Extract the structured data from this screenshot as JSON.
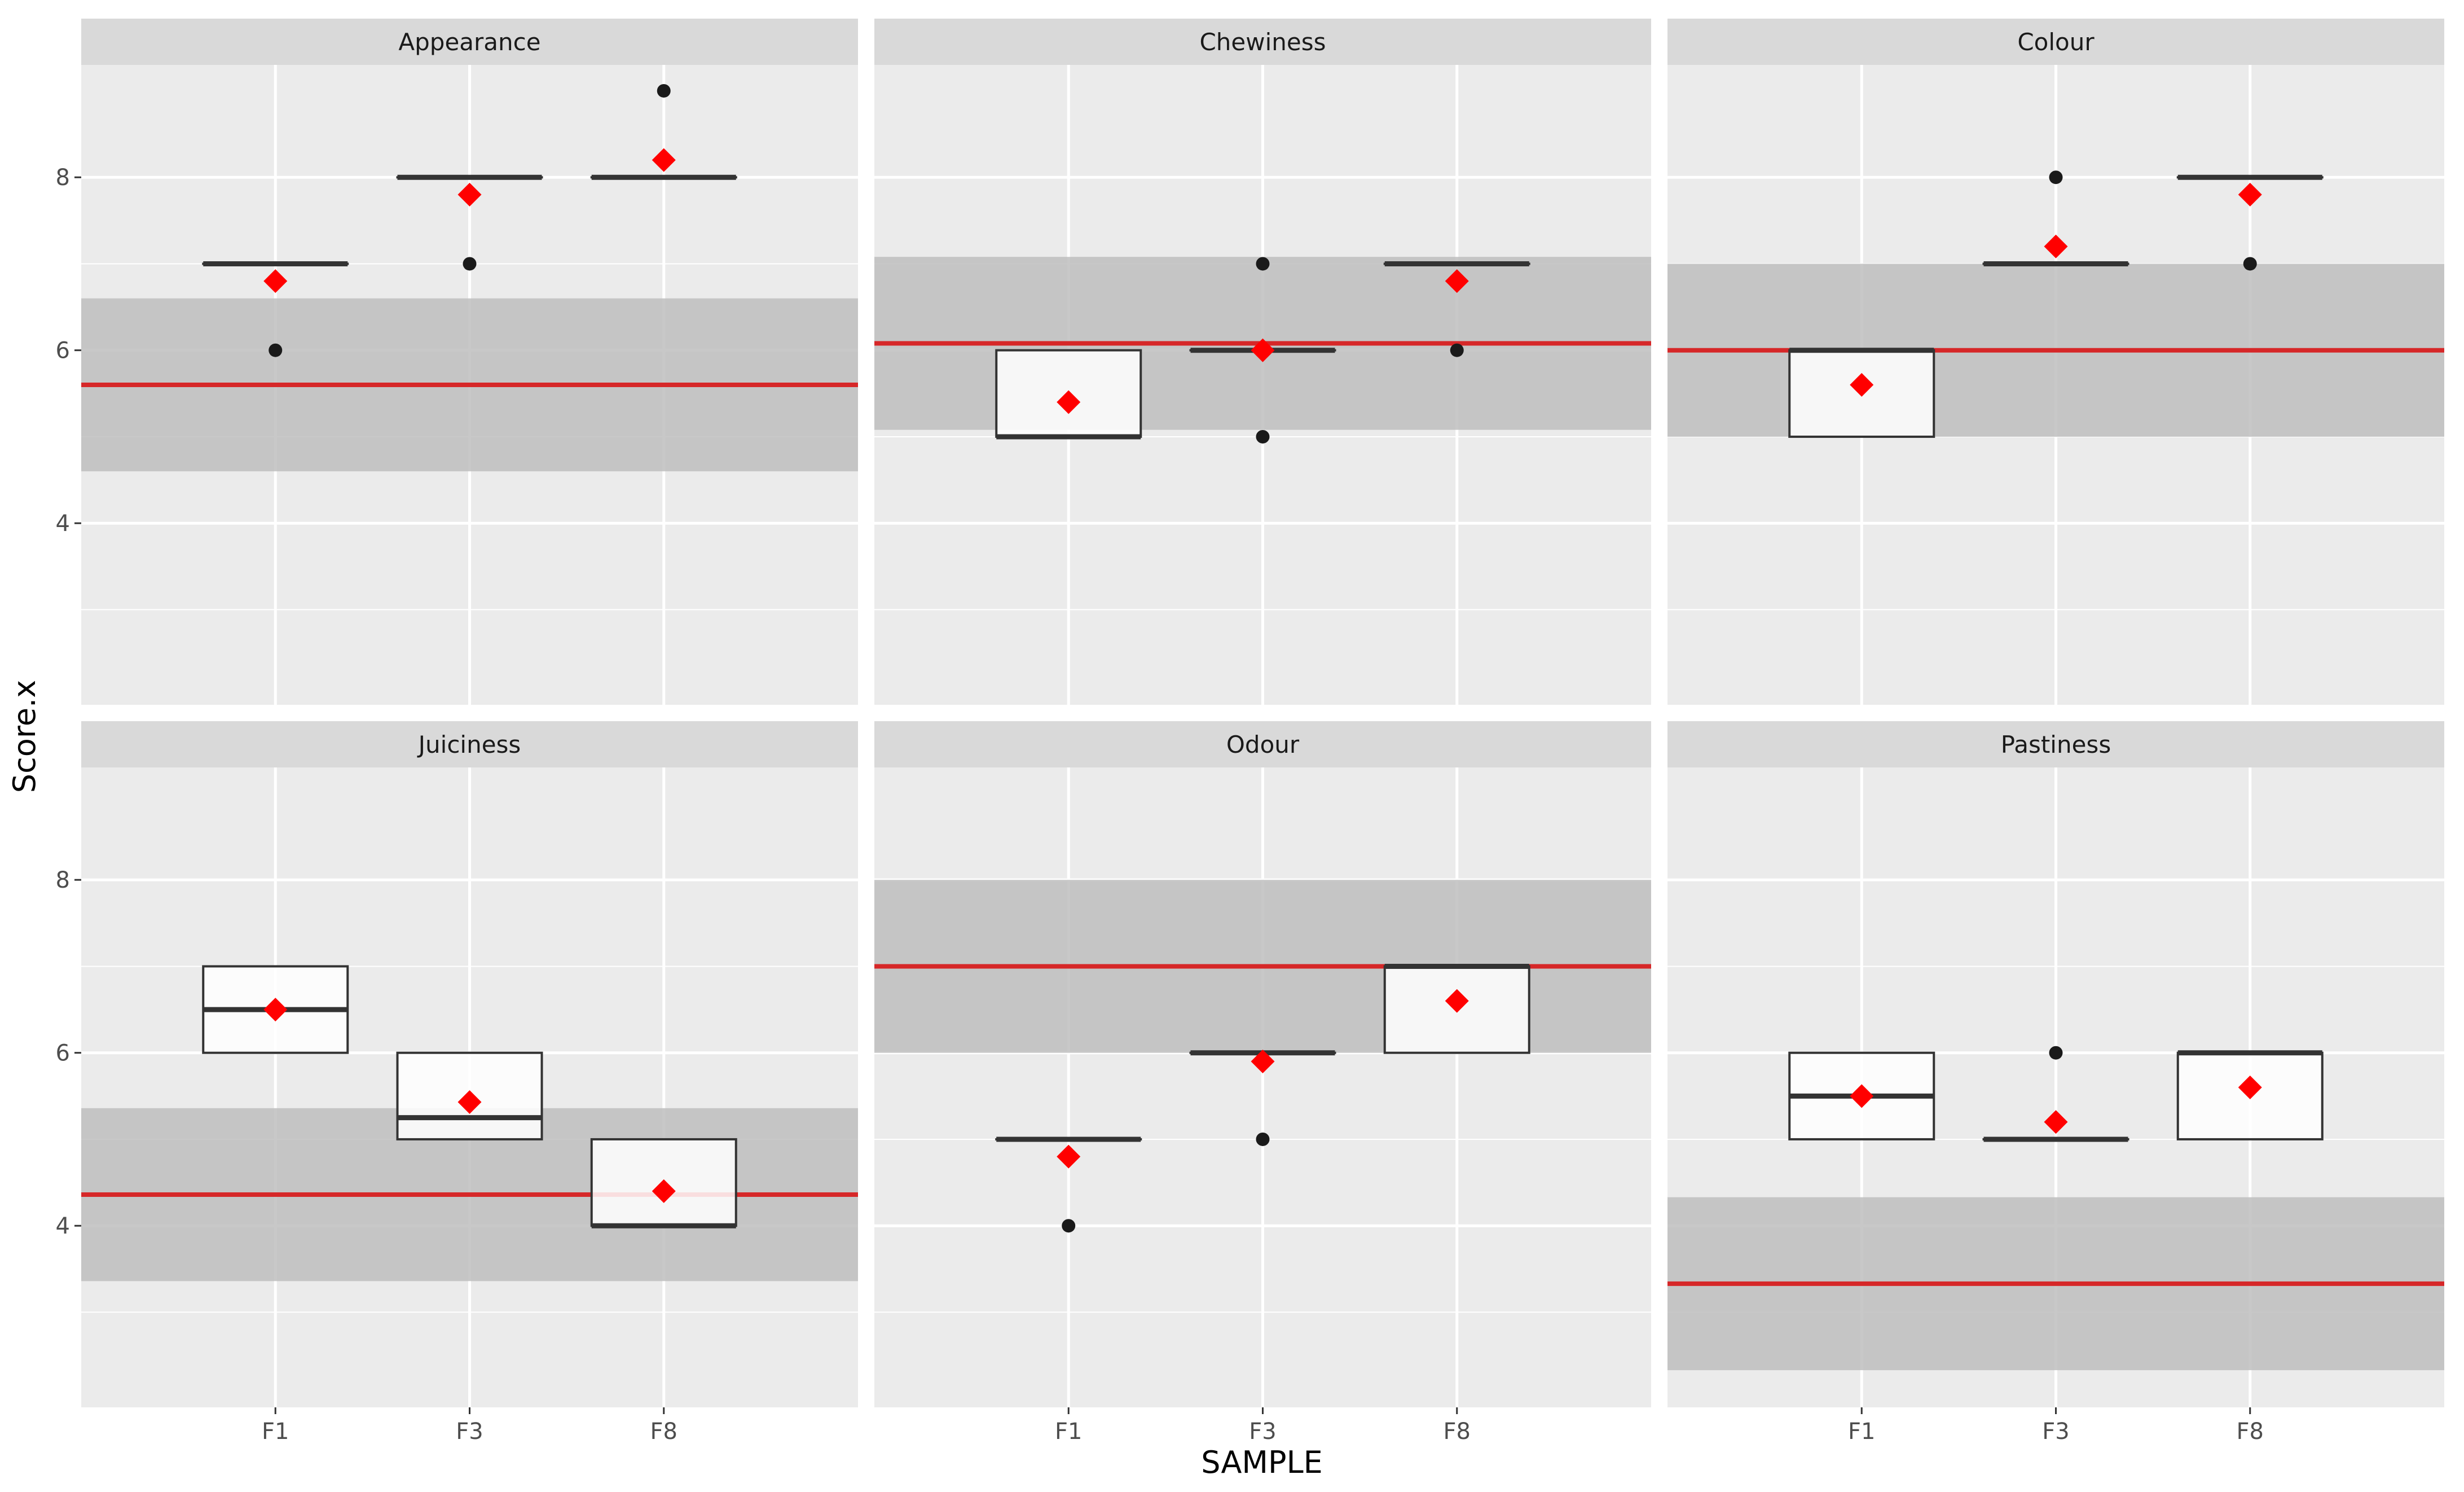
{
  "chart_data": {
    "type": "boxplot",
    "layout": "facet_wrap",
    "xlabel": "SAMPLE",
    "ylabel": "Score.x",
    "categories": [
      "F1",
      "F3",
      "F8"
    ],
    "ylim": [
      1.9,
      9.3
    ],
    "y_ticks": [
      4,
      6,
      8
    ],
    "colors": {
      "panel": "#ebebeb",
      "strip": "#d9d9d9",
      "band": "#bebebe",
      "ref_line": "#d62728",
      "mean_marker": "#ff0000",
      "box_stroke": "#333333",
      "outlier": "#1a1a1a"
    },
    "panels": [
      {
        "title": "Appearance",
        "ref_mean": 5.6,
        "ref_low": 4.6,
        "ref_high": 6.6,
        "boxes": [
          {
            "sample": "F1",
            "q1": 7,
            "median": 7,
            "q3": 7,
            "whisker_low": 7,
            "whisker_high": 7,
            "outliers": [
              6
            ],
            "mean": 6.8
          },
          {
            "sample": "F3",
            "q1": 8,
            "median": 8,
            "q3": 8,
            "whisker_low": 8,
            "whisker_high": 8,
            "outliers": [
              7
            ],
            "mean": 7.8
          },
          {
            "sample": "F8",
            "q1": 8,
            "median": 8,
            "q3": 8,
            "whisker_low": 8,
            "whisker_high": 8,
            "outliers": [
              9
            ],
            "mean": 8.2
          }
        ]
      },
      {
        "title": "Chewiness",
        "ref_mean": 6.08,
        "ref_low": 5.08,
        "ref_high": 7.08,
        "boxes": [
          {
            "sample": "F1",
            "q1": 5,
            "median": 5,
            "q3": 6,
            "whisker_low": 5,
            "whisker_high": 6,
            "outliers": [],
            "mean": 5.4
          },
          {
            "sample": "F3",
            "q1": 6,
            "median": 6,
            "q3": 6,
            "whisker_low": 6,
            "whisker_high": 6,
            "outliers": [
              7,
              5
            ],
            "mean": 6.0
          },
          {
            "sample": "F8",
            "q1": 7,
            "median": 7,
            "q3": 7,
            "whisker_low": 7,
            "whisker_high": 7,
            "outliers": [
              6
            ],
            "mean": 6.8
          }
        ]
      },
      {
        "title": "Colour",
        "ref_mean": 6.0,
        "ref_low": 5.0,
        "ref_high": 7.0,
        "boxes": [
          {
            "sample": "F1",
            "q1": 5,
            "median": 6,
            "q3": 6,
            "whisker_low": 5,
            "whisker_high": 6,
            "outliers": [],
            "mean": 5.6
          },
          {
            "sample": "F3",
            "q1": 7,
            "median": 7,
            "q3": 7,
            "whisker_low": 7,
            "whisker_high": 7,
            "outliers": [
              8
            ],
            "mean": 7.2
          },
          {
            "sample": "F8",
            "q1": 8,
            "median": 8,
            "q3": 8,
            "whisker_low": 8,
            "whisker_high": 8,
            "outliers": [
              7
            ],
            "mean": 7.8
          }
        ]
      },
      {
        "title": "Juiciness",
        "ref_mean": 4.36,
        "ref_low": 3.36,
        "ref_high": 5.36,
        "boxes": [
          {
            "sample": "F1",
            "q1": 6,
            "median": 6.5,
            "q3": 7,
            "whisker_low": 6,
            "whisker_high": 7,
            "outliers": [],
            "mean": 6.5
          },
          {
            "sample": "F3",
            "q1": 5,
            "median": 5.25,
            "q3": 6,
            "whisker_low": 5,
            "whisker_high": 6,
            "outliers": [],
            "mean": 5.43
          },
          {
            "sample": "F8",
            "q1": 4,
            "median": 4,
            "q3": 5,
            "whisker_low": 4,
            "whisker_high": 5,
            "outliers": [],
            "mean": 4.4
          }
        ]
      },
      {
        "title": "Odour",
        "ref_mean": 7.0,
        "ref_low": 6.0,
        "ref_high": 8.0,
        "boxes": [
          {
            "sample": "F1",
            "q1": 5,
            "median": 5,
            "q3": 5,
            "whisker_low": 5,
            "whisker_high": 5,
            "outliers": [
              4
            ],
            "mean": 4.8
          },
          {
            "sample": "F3",
            "q1": 6,
            "median": 6,
            "q3": 6,
            "whisker_low": 6,
            "whisker_high": 6,
            "outliers": [
              5
            ],
            "mean": 5.9
          },
          {
            "sample": "F8",
            "q1": 6,
            "median": 7,
            "q3": 7,
            "whisker_low": 6,
            "whisker_high": 7,
            "outliers": [],
            "mean": 6.6
          }
        ]
      },
      {
        "title": "Pastiness",
        "ref_mean": 3.33,
        "ref_low": 2.33,
        "ref_high": 4.33,
        "boxes": [
          {
            "sample": "F1",
            "q1": 5,
            "median": 5.5,
            "q3": 6,
            "whisker_low": 5,
            "whisker_high": 6,
            "outliers": [],
            "mean": 5.5
          },
          {
            "sample": "F3",
            "q1": 5,
            "median": 5,
            "q3": 5,
            "whisker_low": 5,
            "whisker_high": 5,
            "outliers": [
              6
            ],
            "mean": 5.2
          },
          {
            "sample": "F8",
            "q1": 5,
            "median": 6,
            "q3": 6,
            "whisker_low": 5,
            "whisker_high": 6,
            "outliers": [],
            "mean": 5.6
          }
        ]
      }
    ]
  }
}
